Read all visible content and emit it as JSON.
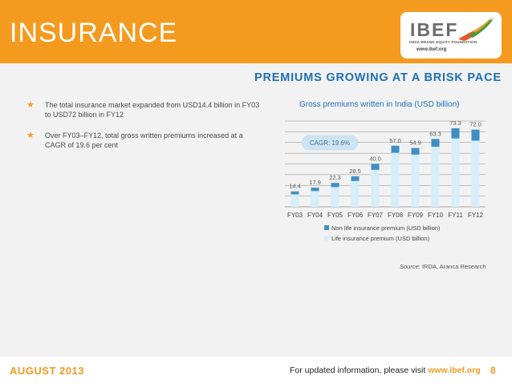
{
  "header": {
    "title": "INSURANCE",
    "logo": {
      "name": "IBEF",
      "subtitle": "INDIA BRAND EQUITY FOUNDATION",
      "url": "www.ibef.org"
    }
  },
  "section_title": "PREMIUMS GROWING AT A BRISK PACE",
  "bullets": [
    "The total insurance market expanded from USD14.4 billion in FY03 to USD72 billion in FY12",
    "Over FY03–FY12, total gross written premiums increased at a CAGR of 19.6 per cent"
  ],
  "chart_data": {
    "type": "bar",
    "stacked": true,
    "title": "Gross premiums written in India (USD billion)",
    "categories": [
      "FY03",
      "FY04",
      "FY05",
      "FY06",
      "FY07",
      "FY08",
      "FY09",
      "FY10",
      "FY11",
      "FY12"
    ],
    "totals": [
      14.4,
      17.9,
      22.3,
      28.5,
      40.0,
      57.0,
      54.9,
      63.3,
      73.3,
      72.0
    ],
    "total_labels": [
      "14.4",
      "17.9",
      "22.3",
      "28.5",
      "40.0",
      "57.0",
      "54.9",
      "63.3",
      "73.3",
      "72.0"
    ],
    "series": [
      {
        "name": "Non life insurance premium (USD billion)",
        "color": "#3f8fc4",
        "values": [
          2.8,
          3.2,
          3.9,
          4.4,
          5.5,
          6.6,
          6.2,
          7.3,
          9.5,
          10.3
        ]
      },
      {
        "name": "Life insurance premium (USD billion)",
        "color": "#d7eefb",
        "values": [
          11.6,
          14.7,
          18.4,
          24.1,
          34.5,
          50.4,
          48.7,
          56.0,
          63.8,
          61.7
        ]
      }
    ],
    "ylim": [
      0,
      80
    ],
    "gridlines": [
      10,
      20,
      30,
      40,
      50,
      60,
      70,
      80
    ],
    "annotation": "CAGR: 19.6%"
  },
  "source": {
    "label": "Source:",
    "text": " IRDA, Aranca Research"
  },
  "footer": {
    "date": "AUGUST 2013",
    "info": "For updated information, please visit ",
    "url": "www.ibef.org",
    "page": "8"
  }
}
